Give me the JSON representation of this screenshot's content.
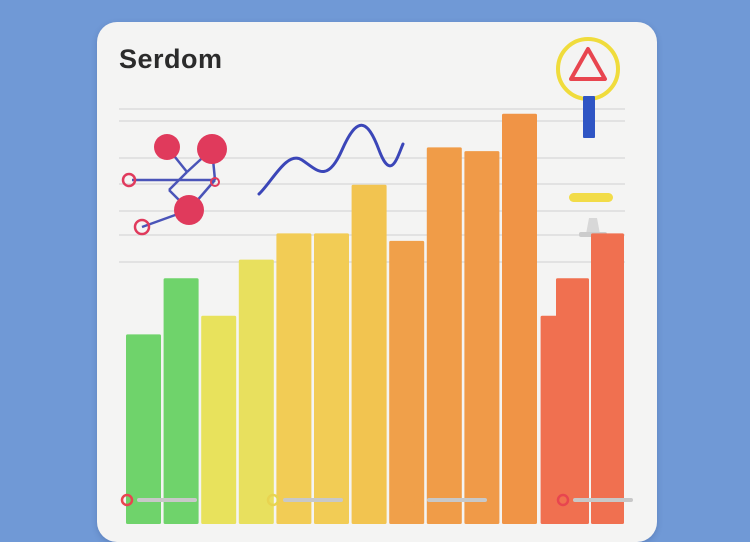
{
  "card": {
    "title": "Serdom"
  },
  "colors": {
    "background": "#7099d6",
    "card": "#f4f4f3",
    "alert_triangle": "#e8454f",
    "alert_ring": "#f0dc3c",
    "alert_stem": "#2f55c4",
    "molecule_node": "#e03a5c",
    "molecule_bond": "#4a54b8",
    "wave": "#3b46b8"
  },
  "chart_data": {
    "type": "bar",
    "title": "Serdom",
    "xlabel": "",
    "ylabel": "",
    "grid": true,
    "ylim": [
      0,
      100
    ],
    "categories": [
      "",
      "",
      "",
      "",
      "",
      "",
      "",
      "",
      "",
      "",
      "",
      ""
    ],
    "values": [
      40,
      55,
      45,
      60,
      67,
      67,
      80,
      65,
      90,
      89,
      99,
      45
    ],
    "bar_colors": [
      "#6fd36b",
      "#6fd36b",
      "#e8e25c",
      "#e8e05e",
      "#f2cc55",
      "#f2cc55",
      "#f2c450",
      "#f0a04a",
      "#f09c48",
      "#f09a48",
      "#f09446",
      "#f07050"
    ],
    "detached_series": {
      "values": [
        55,
        67
      ],
      "color": "#f07050"
    },
    "legend": {
      "placement": "bottom",
      "swatch_colors": [
        "#e8454f",
        "#e8d450",
        "#f0a04a",
        "#e8454f"
      ]
    }
  }
}
